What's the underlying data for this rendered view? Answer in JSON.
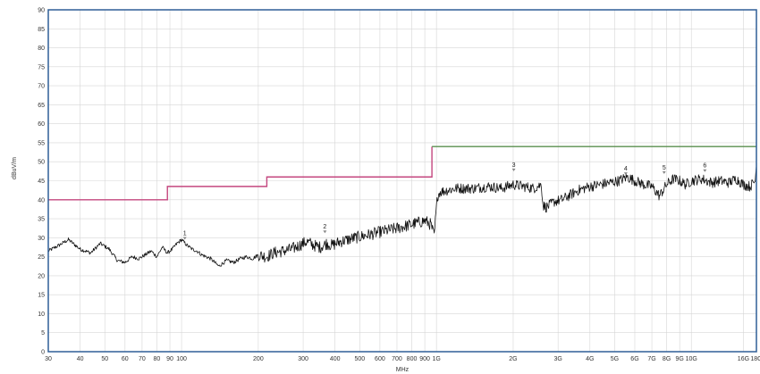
{
  "chart_data": {
    "type": "line",
    "title": "",
    "xlabel": "MHz",
    "ylabel": "dBuV/m",
    "x_scale": "log",
    "xlim": [
      30,
      18000
    ],
    "ylim": [
      0,
      90
    ],
    "grid": true,
    "colors": {
      "frame": "#2f5f97",
      "grid": "#d6d6d6",
      "trace": "#111111",
      "limit_low": "#c4477f",
      "limit_high": "#5a8f4e"
    },
    "x_ticks": [
      {
        "value": 30,
        "label": "30"
      },
      {
        "value": 40,
        "label": "40"
      },
      {
        "value": 50,
        "label": "50"
      },
      {
        "value": 60,
        "label": "60"
      },
      {
        "value": 70,
        "label": "70"
      },
      {
        "value": 80,
        "label": "80"
      },
      {
        "value": 90,
        "label": "90"
      },
      {
        "value": 100,
        "label": "100"
      },
      {
        "value": 200,
        "label": "200"
      },
      {
        "value": 300,
        "label": "300"
      },
      {
        "value": 400,
        "label": "400"
      },
      {
        "value": 500,
        "label": "500"
      },
      {
        "value": 600,
        "label": "600"
      },
      {
        "value": 700,
        "label": "700"
      },
      {
        "value": 800,
        "label": "800"
      },
      {
        "value": 900,
        "label": "900"
      },
      {
        "value": 1000,
        "label": "1G"
      },
      {
        "value": 2000,
        "label": "2G"
      },
      {
        "value": 3000,
        "label": "3G"
      },
      {
        "value": 4000,
        "label": "4G"
      },
      {
        "value": 5000,
        "label": "5G"
      },
      {
        "value": 6000,
        "label": "6G"
      },
      {
        "value": 7000,
        "label": "7G"
      },
      {
        "value": 8000,
        "label": "8G"
      },
      {
        "value": 9000,
        "label": "9G"
      },
      {
        "value": 10000,
        "label": "10G"
      },
      {
        "value": 16000,
        "label": "16G"
      },
      {
        "value": 18000,
        "label": "18G"
      }
    ],
    "y_ticks": [
      0,
      5,
      10,
      15,
      20,
      25,
      30,
      35,
      40,
      45,
      50,
      55,
      60,
      65,
      70,
      75,
      80,
      85,
      90
    ],
    "series": [
      {
        "kind": "measurement",
        "x": [
          30,
          33,
          36,
          40,
          44,
          48,
          52,
          56,
          60,
          64,
          68,
          72,
          76,
          80,
          84,
          88,
          92,
          96,
          100,
          105,
          110,
          115,
          120,
          130,
          140,
          150,
          160,
          170,
          180,
          190,
          200,
          215,
          230,
          250,
          270,
          290,
          310,
          330,
          350,
          370,
          390,
          420,
          450,
          480,
          520,
          560,
          600,
          650,
          700,
          750,
          800,
          850,
          900,
          950,
          980,
          1000,
          1010,
          1030,
          1100,
          1200,
          1400,
          1600,
          1800,
          2000,
          2200,
          2400,
          2580,
          2620,
          2700,
          2900,
          3100,
          3300,
          3600,
          4000,
          4400,
          4800,
          5200,
          5600,
          6000,
          6500,
          7000,
          7500,
          8000,
          8500,
          9000,
          9500,
          10000,
          11000,
          12000,
          13000,
          14000,
          15000,
          16000,
          17000,
          17800,
          18000
        ],
        "y": [
          26.5,
          28,
          29.5,
          27,
          26,
          28.5,
          27,
          24,
          23.5,
          25,
          24.5,
          25.5,
          26.5,
          25,
          27.5,
          26,
          27,
          28.5,
          29.5,
          28,
          27,
          26.5,
          25.5,
          24.5,
          22.5,
          24,
          23.5,
          24.5,
          25,
          24.5,
          25.5,
          25,
          26,
          26.5,
          27,
          28,
          29,
          28,
          27.5,
          28.5,
          28,
          29,
          29.5,
          30,
          30.5,
          31,
          31.5,
          32,
          32.5,
          33,
          33.5,
          34,
          34.5,
          33.5,
          30.5,
          38,
          41,
          42,
          42.5,
          43,
          43,
          43.5,
          43,
          44,
          43.5,
          43,
          44,
          38.5,
          38,
          39.5,
          40,
          41,
          42.5,
          43.5,
          44,
          44.5,
          45,
          46,
          45,
          44,
          43.5,
          41,
          44,
          45.5,
          45,
          44,
          45,
          45.5,
          44.5,
          45,
          44.5,
          45.5,
          44,
          43.5,
          45,
          49
        ]
      },
      {
        "kind": "limit",
        "color": "limit_low",
        "x": [
          30,
          88,
          88,
          216,
          216,
          960,
          960
        ],
        "y": [
          40,
          40,
          43.5,
          43.5,
          46,
          46,
          54
        ]
      },
      {
        "kind": "limit",
        "color": "limit_high",
        "x": [
          960,
          18000
        ],
        "y": [
          54,
          54
        ]
      }
    ],
    "markers": [
      {
        "label": "1",
        "x": 103,
        "y": 29.5
      },
      {
        "label": "2",
        "x": 365,
        "y": 31.2
      },
      {
        "label": "3",
        "x": 2010,
        "y": 47.5
      },
      {
        "label": "4",
        "x": 5530,
        "y": 46.5
      },
      {
        "label": "5",
        "x": 7820,
        "y": 46.8
      },
      {
        "label": "6",
        "x": 11300,
        "y": 47.3
      }
    ]
  }
}
